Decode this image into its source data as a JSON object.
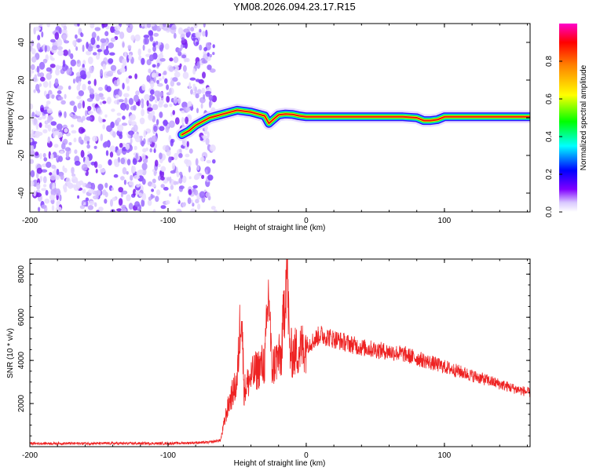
{
  "title": "YM08.2026.094.23.17.R15",
  "chart_data": [
    {
      "type": "heatmap",
      "title": "YM08.2026.094.23.17.R15",
      "xlabel": "Height of straight line (km)",
      "ylabel": "Frequency (Hz)",
      "xlim": [
        -200,
        162
      ],
      "ylim": [
        -50,
        50
      ],
      "xticks": [
        -200,
        -100,
        0,
        100
      ],
      "yticks": [
        -40,
        -20,
        0,
        20,
        40
      ],
      "noise_region_x": [
        -200,
        -70
      ],
      "signal_track": {
        "x": [
          -90,
          -85,
          -80,
          -75,
          -70,
          -65,
          -60,
          -55,
          -50,
          -45,
          -40,
          -35,
          -30,
          -27,
          -24,
          -20,
          -15,
          -10,
          -5,
          0,
          20,
          40,
          60,
          70,
          80,
          85,
          90,
          95,
          100,
          110,
          130,
          150,
          162
        ],
        "freq": [
          -9,
          -7,
          -4,
          -2,
          0,
          1,
          2,
          3,
          4,
          3.5,
          3,
          2,
          1,
          -3,
          -1,
          1.5,
          2,
          1.8,
          1,
          0.5,
          0.5,
          0.5,
          0.5,
          0.5,
          0,
          -1.5,
          -1.5,
          -1,
          0.5,
          0.5,
          0.5,
          0.5,
          0.5
        ]
      },
      "colorbar": {
        "label": "Normalized spectral amplitude",
        "range": [
          0,
          1
        ],
        "ticks": [
          0.0,
          0.2,
          0.4,
          0.6,
          0.8
        ]
      }
    },
    {
      "type": "line",
      "xlabel": "Height of straight line (km)",
      "ylabel": "SNR (10 * v/v)",
      "xlim": [
        -200,
        162
      ],
      "ylim": [
        0,
        8700
      ],
      "xticks": [
        -200,
        -100,
        0,
        100
      ],
      "yticks": [
        2000,
        4000,
        6000,
        8000
      ],
      "series": [
        {
          "name": "SNR",
          "color": "#ee2222",
          "x": [
            -200,
            -150,
            -100,
            -70,
            -62,
            -58,
            -55,
            -50,
            -47,
            -45,
            -42,
            -38,
            -35,
            -30,
            -27,
            -25,
            -22,
            -18,
            -14,
            -12,
            -10,
            -5,
            0,
            5,
            10,
            20,
            30,
            40,
            50,
            60,
            70,
            80,
            90,
            100,
            110,
            120,
            130,
            140,
            150,
            162
          ],
          "y": [
            150,
            150,
            150,
            200,
            300,
            1500,
            2200,
            3000,
            6800,
            2600,
            3000,
            3400,
            3600,
            3900,
            7300,
            3600,
            4000,
            4200,
            8700,
            4400,
            4300,
            4500,
            4700,
            4900,
            5200,
            5000,
            4800,
            4600,
            4500,
            4400,
            4300,
            4100,
            3900,
            3700,
            3500,
            3300,
            3100,
            2900,
            2700,
            2500
          ]
        }
      ]
    }
  ]
}
